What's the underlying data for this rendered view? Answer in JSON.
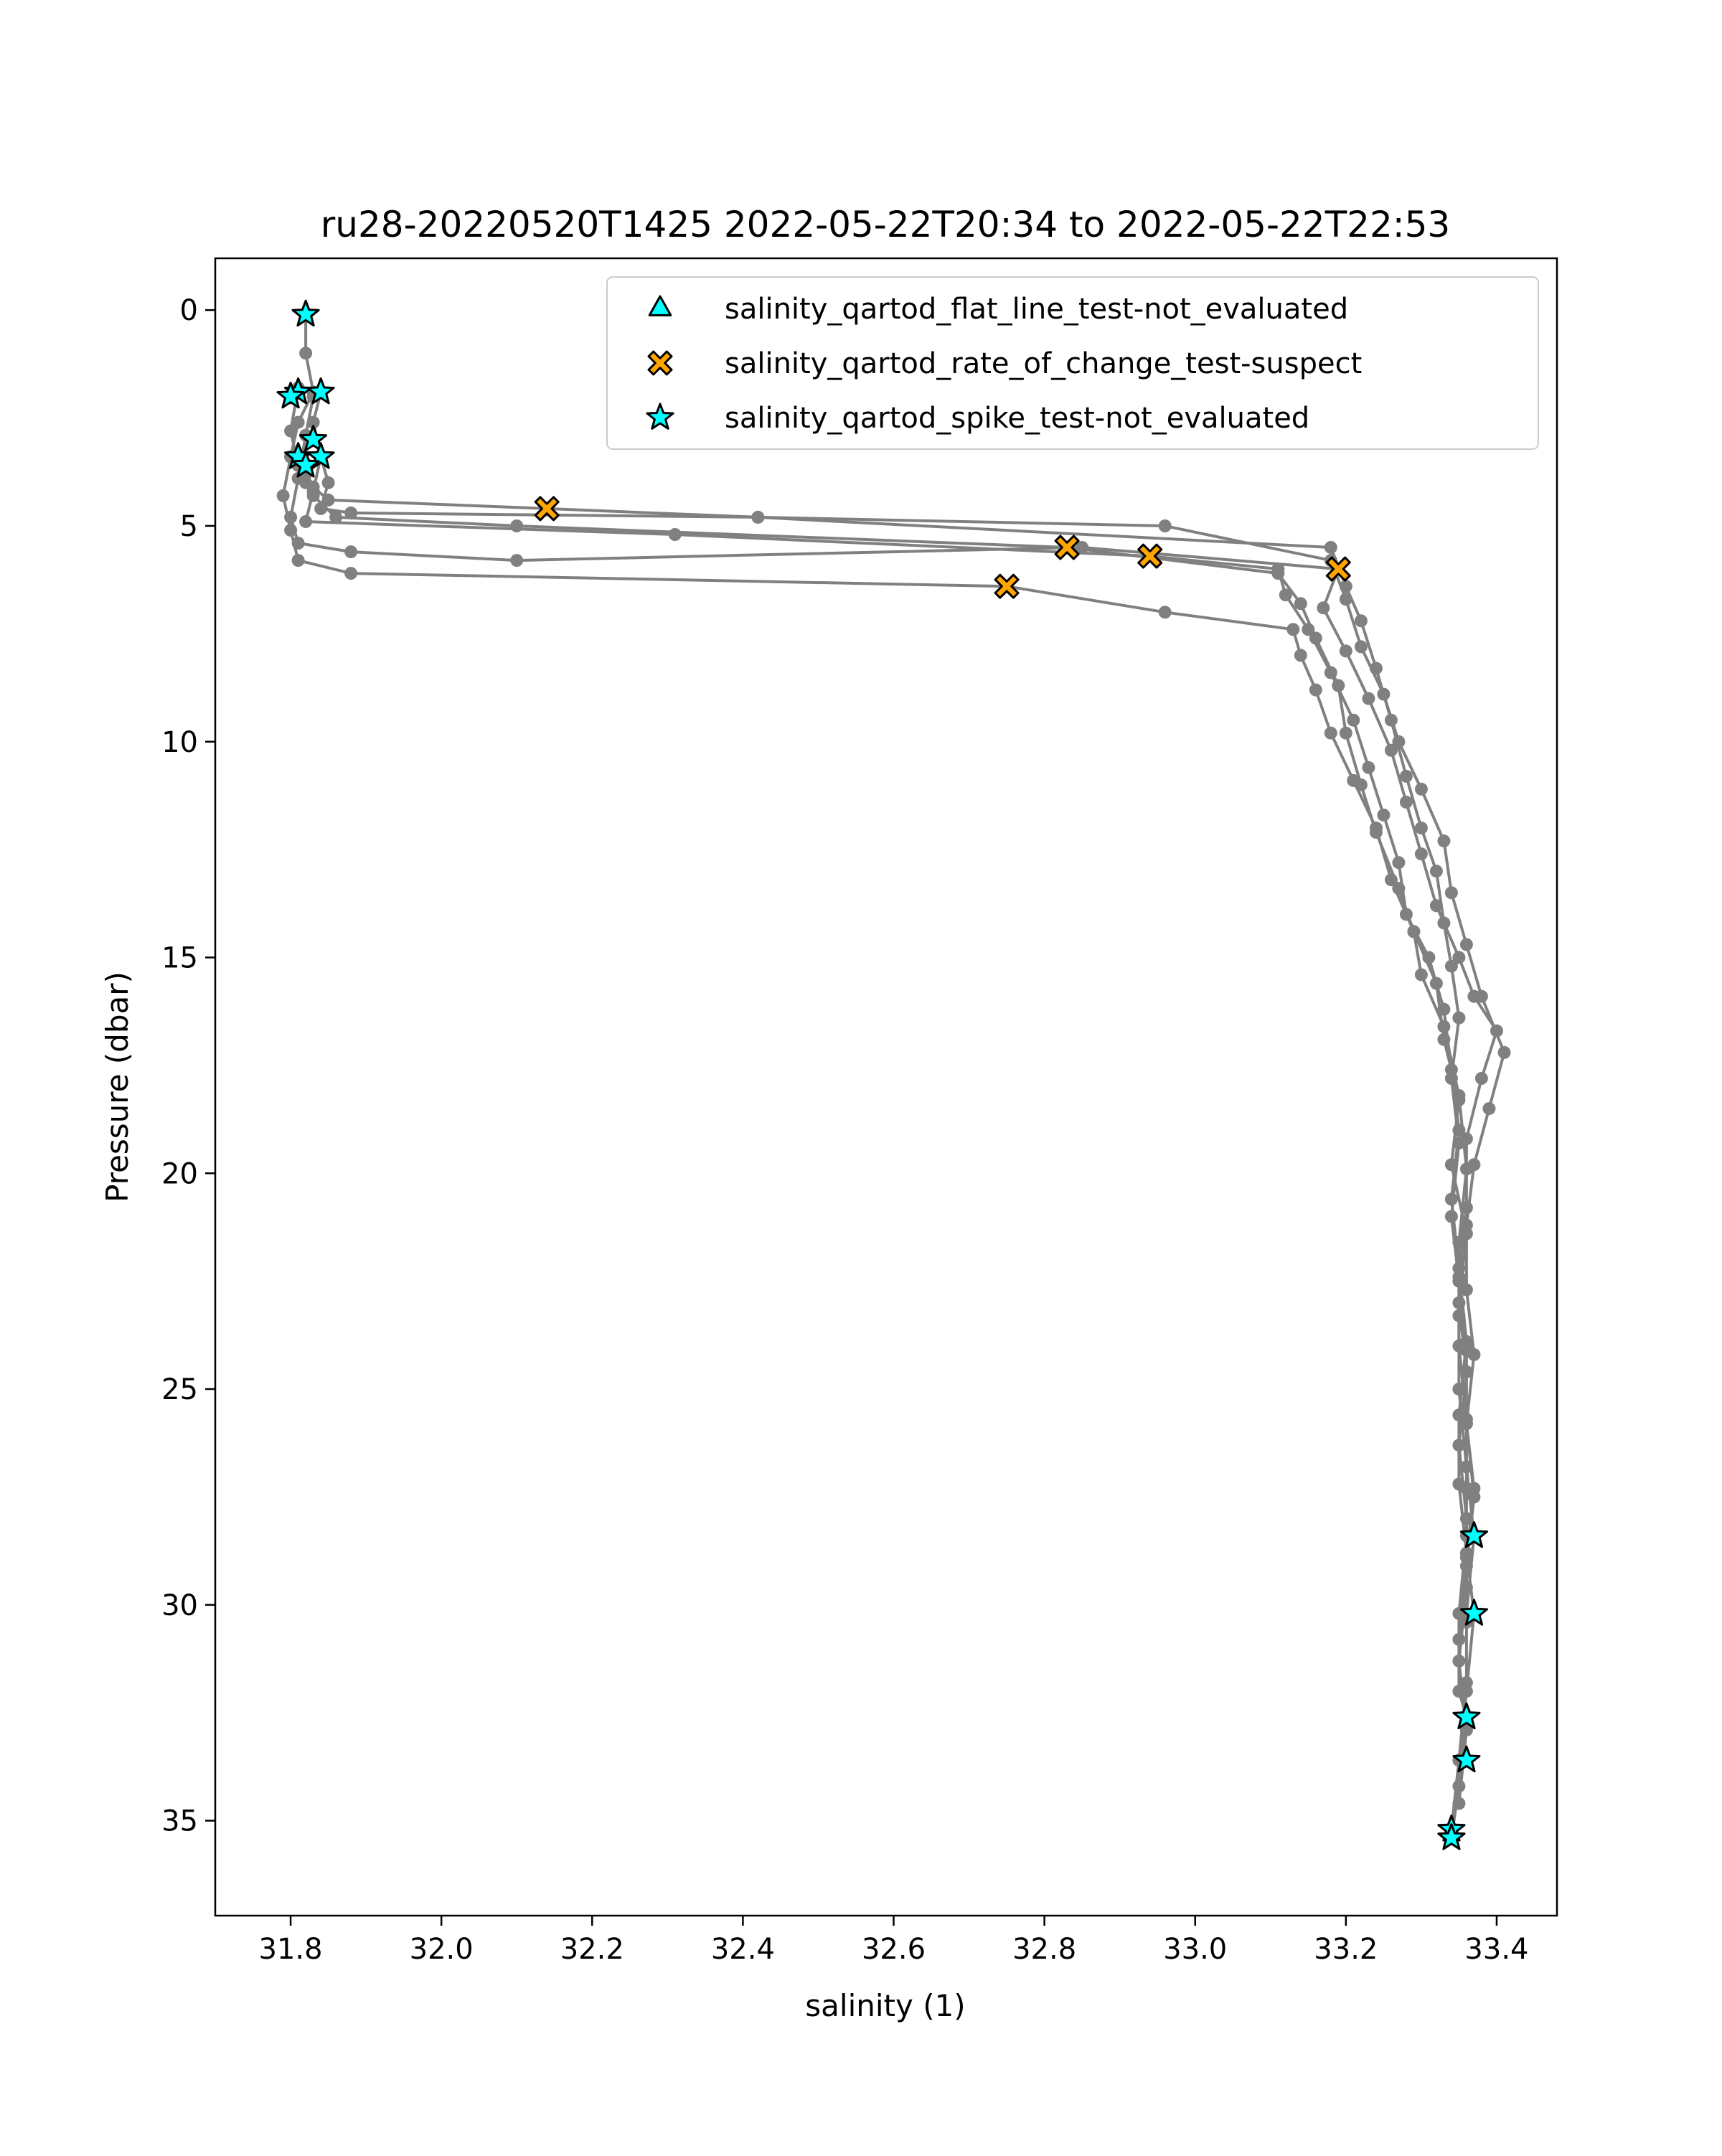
{
  "chart_data": {
    "type": "scatter",
    "title": "ru28-20220520T1425 2022-05-22T20:34 to 2022-05-22T22:53",
    "xlabel": "salinity (1)",
    "ylabel": "Pressure (dbar)",
    "xlim": [
      31.7,
      33.48
    ],
    "ylim": [
      37.2,
      -1.2
    ],
    "y_inverted": true,
    "grid": false,
    "legend_placement": "top-right",
    "xticks": [
      "31.8",
      "32.0",
      "32.2",
      "32.4",
      "32.6",
      "32.8",
      "33.0",
      "33.2",
      "33.4"
    ],
    "yticks": [
      "0",
      "5",
      "10",
      "15",
      "20",
      "25",
      "30",
      "35"
    ],
    "colors": {
      "profile_line": "#808080",
      "flat_line_marker": "#00ffff",
      "rate_of_change_marker": "#ffa500",
      "spike_marker": "#00ffff",
      "marker_edge": "#000000"
    },
    "series": [
      {
        "name": "salinity_qartod_flat_line_test-not_evaluated",
        "marker": "triangle",
        "x": [],
        "y": []
      },
      {
        "name": "salinity_qartod_rate_of_change_test-suspect",
        "marker": "x-filled",
        "x": [
          32.14,
          32.83,
          32.94,
          32.75,
          33.19
        ],
        "y": [
          4.6,
          5.5,
          5.7,
          6.4,
          6.0
        ]
      },
      {
        "name": "salinity_qartod_spike_test-not_evaluated",
        "marker": "star",
        "x": [
          31.82,
          31.81,
          31.84,
          31.8,
          31.83,
          31.81,
          31.84,
          31.82,
          33.37,
          33.37,
          33.36,
          33.36,
          33.34,
          33.34
        ],
        "y": [
          0.1,
          1.9,
          1.9,
          2.0,
          3.0,
          3.4,
          3.4,
          3.6,
          28.4,
          30.2,
          32.6,
          33.6,
          35.2,
          35.4
        ]
      }
    ],
    "profiles": [
      {
        "x": [
          31.82,
          31.82,
          31.83,
          31.81,
          31.8,
          31.82,
          31.83,
          31.85,
          32.14,
          32.42,
          33.18,
          33.2,
          33.22,
          33.24,
          33.26,
          33.28,
          33.3,
          33.32,
          33.33,
          33.34,
          33.35,
          33.34,
          33.35,
          33.34,
          33.35,
          33.35,
          33.36,
          33.36,
          33.36,
          33.35,
          33.35,
          33.36,
          33.35,
          33.34
        ],
        "y": [
          0.1,
          1.0,
          1.9,
          2.6,
          3.4,
          3.8,
          4.1,
          4.4,
          4.6,
          4.8,
          5.5,
          6.4,
          7.2,
          8.3,
          9.5,
          10.8,
          12.0,
          13.0,
          14.2,
          15.2,
          16.4,
          17.8,
          19.3,
          21.0,
          22.5,
          24.0,
          25.7,
          27.3,
          28.4,
          30.2,
          32.0,
          32.6,
          34.2,
          35.4
        ]
      },
      {
        "x": [
          31.81,
          31.8,
          31.81,
          31.82,
          31.83,
          31.86,
          32.1,
          32.83,
          33.11,
          33.14,
          33.16,
          33.19,
          33.2,
          33.22,
          33.24,
          33.27,
          33.29,
          33.3,
          33.33,
          33.35,
          33.36,
          33.35,
          33.35,
          33.35,
          33.36,
          33.37,
          33.36,
          33.36,
          33.35,
          33.34
        ],
        "y": [
          1.8,
          2.8,
          3.6,
          4.0,
          4.3,
          4.8,
          5.0,
          5.5,
          6.1,
          6.8,
          7.6,
          8.7,
          9.8,
          11.0,
          12.1,
          13.4,
          14.4,
          15.4,
          16.6,
          18.2,
          19.9,
          21.6,
          23.3,
          25.0,
          26.8,
          28.4,
          30.2,
          31.8,
          33.6,
          35.2
        ]
      },
      {
        "x": [
          31.84,
          31.83,
          31.84,
          31.83,
          31.82,
          32.31,
          32.94,
          33.11,
          33.12,
          33.15,
          33.18,
          33.21,
          33.23,
          33.25,
          33.27,
          33.28,
          33.31,
          33.33,
          33.34,
          33.35,
          33.34,
          33.35,
          33.36,
          33.35,
          33.35,
          33.36,
          33.37,
          33.36,
          33.35
        ],
        "y": [
          1.9,
          2.6,
          3.4,
          4.2,
          4.9,
          5.2,
          5.7,
          6.0,
          6.6,
          7.4,
          8.4,
          9.5,
          10.6,
          11.7,
          12.8,
          14.0,
          15.0,
          16.2,
          17.6,
          19.0,
          20.6,
          22.2,
          23.9,
          25.6,
          27.2,
          28.8,
          30.2,
          32.0,
          33.6
        ]
      },
      {
        "x": [
          31.8,
          31.79,
          31.8,
          31.81,
          31.88,
          32.75,
          32.96,
          33.13,
          33.14,
          33.16,
          33.18,
          33.21,
          33.24,
          33.26,
          33.29,
          33.32,
          33.33,
          33.35,
          33.34,
          33.36,
          33.35,
          33.36,
          33.35,
          33.36,
          33.36,
          33.35,
          33.36,
          33.35
        ],
        "y": [
          3.4,
          4.3,
          5.1,
          5.8,
          6.1,
          6.4,
          7.0,
          7.4,
          8.0,
          8.8,
          9.8,
          10.9,
          12.0,
          13.2,
          14.4,
          15.6,
          16.9,
          18.3,
          19.8,
          21.4,
          23.0,
          24.6,
          26.3,
          28.0,
          29.6,
          31.3,
          32.9,
          34.6
        ]
      },
      {
        "x": [
          31.83,
          31.82,
          31.81,
          31.8,
          31.81,
          31.88,
          32.1,
          32.85,
          33.19,
          33.17,
          33.2,
          33.23,
          33.26,
          33.28,
          33.3,
          33.32,
          33.35,
          33.37,
          33.4,
          33.38,
          33.36,
          33.36,
          33.35,
          33.36,
          33.36,
          33.37,
          33.36,
          33.35
        ],
        "y": [
          2.0,
          2.9,
          3.9,
          4.8,
          5.4,
          5.6,
          5.8,
          5.5,
          6.0,
          6.9,
          7.9,
          9.0,
          10.2,
          11.4,
          12.6,
          13.8,
          15.0,
          15.9,
          16.7,
          17.8,
          19.2,
          20.8,
          22.4,
          24.1,
          25.8,
          27.5,
          29.1,
          30.8
        ]
      },
      {
        "x": [
          31.84,
          31.85,
          31.84,
          31.88,
          32.42,
          32.96,
          33.18,
          33.2,
          33.22,
          33.25,
          33.27,
          33.3,
          33.33,
          33.34,
          33.36,
          33.38,
          33.41,
          33.39,
          33.37,
          33.36,
          33.36,
          33.37,
          33.36,
          33.37,
          33.36,
          33.36
        ],
        "y": [
          3.4,
          4.0,
          4.6,
          4.7,
          4.8,
          5.0,
          5.8,
          6.7,
          7.8,
          8.9,
          10.0,
          11.1,
          12.3,
          13.5,
          14.7,
          15.9,
          17.2,
          18.5,
          19.8,
          21.2,
          22.7,
          24.2,
          25.8,
          27.3,
          28.9,
          30.4
        ]
      }
    ]
  }
}
